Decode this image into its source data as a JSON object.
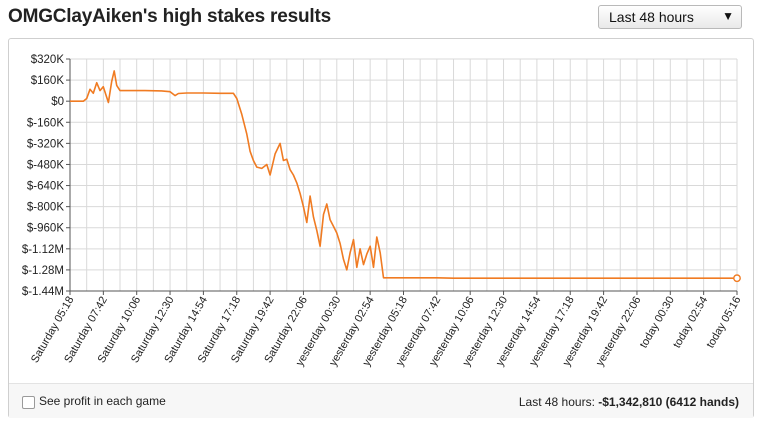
{
  "header": {
    "title": "OMGClayAiken's high stakes results",
    "range_select": {
      "value": "Last 48 hours",
      "icon": "triangle-down-icon"
    }
  },
  "footer": {
    "checkbox_label": "See profit in each game",
    "summary_prefix": "Last 48 hours: ",
    "summary_value": "-$1,342,810 (6412 hands)"
  },
  "colors": {
    "line": "#f07b22",
    "grid": "#d9d9d9",
    "axis": "#555555"
  },
  "chart_data": {
    "type": "line",
    "title": "",
    "xlabel": "",
    "ylabel": "",
    "ylim": [
      -1440000,
      320000
    ],
    "y_ticks": [
      {
        "value": 320000,
        "label": "$320K"
      },
      {
        "value": 160000,
        "label": "$160K"
      },
      {
        "value": 0,
        "label": "$0"
      },
      {
        "value": -160000,
        "label": "$-160K"
      },
      {
        "value": -320000,
        "label": "$-320K"
      },
      {
        "value": -480000,
        "label": "$-480K"
      },
      {
        "value": -640000,
        "label": "$-640K"
      },
      {
        "value": -800000,
        "label": "$-800K"
      },
      {
        "value": -960000,
        "label": "$-960K"
      },
      {
        "value": -1120000,
        "label": "$-1.12M"
      },
      {
        "value": -1280000,
        "label": "$-1.28M"
      },
      {
        "value": -1440000,
        "label": "$-1.44M"
      }
    ],
    "x_ticks": [
      "Saturday 05:18",
      "Saturday 07:42",
      "Saturday 10:06",
      "Saturday 12:30",
      "Saturday 14:54",
      "Saturday 17:18",
      "Saturday 19:42",
      "Saturday 22:06",
      "yesterday 00:30",
      "yesterday 02:54",
      "yesterday 05:18",
      "yesterday 07:42",
      "yesterday 10:06",
      "yesterday 12:30",
      "yesterday 14:54",
      "yesterday 17:18",
      "yesterday 19:42",
      "yesterday 22:06",
      "today 00:30",
      "today 02:54",
      "today 05:16"
    ],
    "grid": true,
    "series": [
      {
        "points": [
          [
            0,
            0
          ],
          [
            0.8,
            0
          ],
          [
            1.0,
            20000
          ],
          [
            1.2,
            90000
          ],
          [
            1.4,
            60000
          ],
          [
            1.6,
            140000
          ],
          [
            1.8,
            80000
          ],
          [
            2.0,
            110000
          ],
          [
            2.2,
            30000
          ],
          [
            2.3,
            -10000
          ],
          [
            2.5,
            150000
          ],
          [
            2.65,
            230000
          ],
          [
            2.8,
            120000
          ],
          [
            3.0,
            80000
          ],
          [
            3.5,
            80000
          ],
          [
            4.5,
            80000
          ],
          [
            5.5,
            78000
          ],
          [
            6.0,
            72000
          ],
          [
            6.3,
            42000
          ],
          [
            6.5,
            58000
          ],
          [
            7.0,
            62000
          ],
          [
            8.0,
            62000
          ],
          [
            9.0,
            60000
          ],
          [
            9.8,
            60000
          ],
          [
            10.0,
            20000
          ],
          [
            10.3,
            -100000
          ],
          [
            10.6,
            -250000
          ],
          [
            10.8,
            -380000
          ],
          [
            11.0,
            -450000
          ],
          [
            11.2,
            -500000
          ],
          [
            11.5,
            -510000
          ],
          [
            11.8,
            -480000
          ],
          [
            12.0,
            -560000
          ],
          [
            12.3,
            -400000
          ],
          [
            12.6,
            -320000
          ],
          [
            12.8,
            -450000
          ],
          [
            13.0,
            -440000
          ],
          [
            13.2,
            -520000
          ],
          [
            13.4,
            -560000
          ],
          [
            13.6,
            -620000
          ],
          [
            13.8,
            -700000
          ],
          [
            14.0,
            -800000
          ],
          [
            14.2,
            -920000
          ],
          [
            14.4,
            -720000
          ],
          [
            14.6,
            -880000
          ],
          [
            14.8,
            -980000
          ],
          [
            15.0,
            -1100000
          ],
          [
            15.2,
            -860000
          ],
          [
            15.4,
            -780000
          ],
          [
            15.6,
            -900000
          ],
          [
            15.8,
            -950000
          ],
          [
            16.0,
            -1000000
          ],
          [
            16.2,
            -1080000
          ],
          [
            16.4,
            -1200000
          ],
          [
            16.6,
            -1280000
          ],
          [
            16.8,
            -1150000
          ],
          [
            17.0,
            -1050000
          ],
          [
            17.2,
            -1260000
          ],
          [
            17.4,
            -1120000
          ],
          [
            17.6,
            -1240000
          ],
          [
            17.8,
            -1160000
          ],
          [
            18.0,
            -1100000
          ],
          [
            18.2,
            -1260000
          ],
          [
            18.4,
            -1030000
          ],
          [
            18.6,
            -1150000
          ],
          [
            18.8,
            -1340000
          ],
          [
            19.0,
            -1340000
          ],
          [
            20.0,
            -1340000
          ],
          [
            21.0,
            -1340000
          ],
          [
            22.0,
            -1340000
          ],
          [
            23.0,
            -1342810
          ],
          [
            24.0,
            -1342810
          ],
          [
            25.0,
            -1342810
          ],
          [
            26.0,
            -1342810
          ],
          [
            27.0,
            -1342810
          ],
          [
            28.0,
            -1342810
          ],
          [
            29.0,
            -1342810
          ],
          [
            30.0,
            -1342810
          ],
          [
            31.0,
            -1342810
          ],
          [
            32.0,
            -1342810
          ],
          [
            33.0,
            -1342810
          ],
          [
            34.0,
            -1342810
          ],
          [
            35.0,
            -1342810
          ],
          [
            36.0,
            -1342810
          ],
          [
            37.0,
            -1342810
          ],
          [
            38.0,
            -1342810
          ],
          [
            39.0,
            -1342810
          ],
          [
            40.0,
            -1342810
          ]
        ]
      }
    ]
  }
}
